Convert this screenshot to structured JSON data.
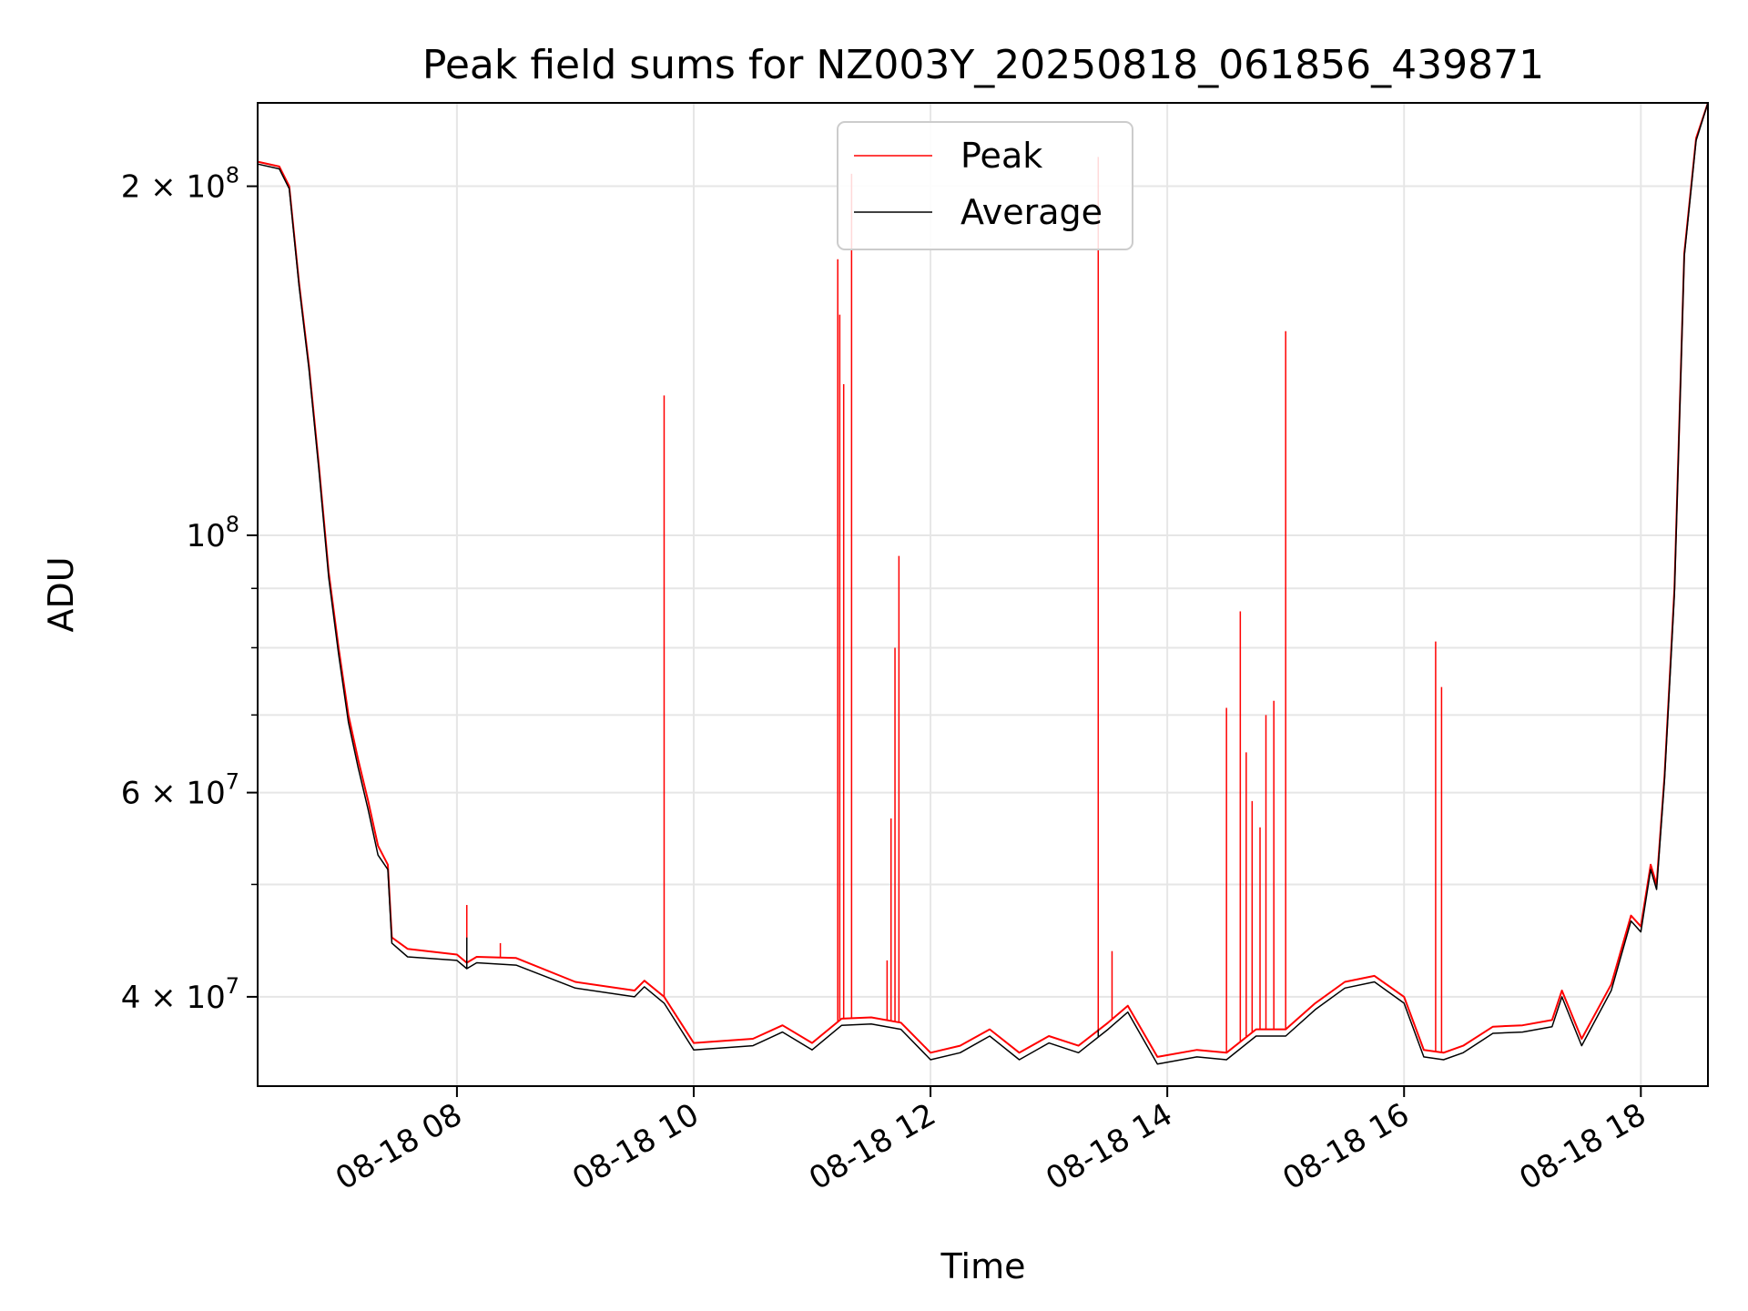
{
  "chart_data": {
    "type": "line",
    "title": "Peak field sums for NZ003Y_20250818_061856_439871",
    "xlabel": "Time",
    "ylabel": "ADU",
    "yscale": "log",
    "xlim": [
      "2025-08-18 06:19",
      "2025-08-18 18:34"
    ],
    "ylim": [
      33500000,
      236000000
    ],
    "grid": true,
    "legend_position": "top-center",
    "x_ticks": [
      {
        "t": "2025-08-18 08:00",
        "label": "08-18 08"
      },
      {
        "t": "2025-08-18 10:00",
        "label": "08-18 10"
      },
      {
        "t": "2025-08-18 12:00",
        "label": "08-18 12"
      },
      {
        "t": "2025-08-18 14:00",
        "label": "08-18 14"
      },
      {
        "t": "2025-08-18 16:00",
        "label": "08-18 16"
      },
      {
        "t": "2025-08-18 18:00",
        "label": "08-18 18"
      }
    ],
    "y_ticks": [
      {
        "v": 40000000,
        "base": "4 × 10",
        "exp": "7"
      },
      {
        "v": 60000000,
        "base": "6 × 10",
        "exp": "7"
      },
      {
        "v": 100000000,
        "base": "10",
        "exp": "8"
      },
      {
        "v": 200000000,
        "base": "2 × 10",
        "exp": "8"
      }
    ],
    "y_minor": [
      50000000,
      70000000,
      80000000,
      90000000
    ],
    "series": [
      {
        "name": "Peak",
        "color": "#ff0000",
        "points": [
          [
            "06:19",
            210000000
          ],
          [
            "06:30",
            208000000
          ],
          [
            "06:35",
            200000000
          ],
          [
            "06:40",
            165000000
          ],
          [
            "06:45",
            140000000
          ],
          [
            "06:50",
            115000000
          ],
          [
            "06:55",
            93000000
          ],
          [
            "07:00",
            80000000
          ],
          [
            "07:05",
            70000000
          ],
          [
            "07:10",
            64000000
          ],
          [
            "07:15",
            59000000
          ],
          [
            "07:20",
            54000000
          ],
          [
            "07:25",
            52000000
          ],
          [
            "07:27",
            45000000
          ],
          [
            "07:35",
            44000000
          ],
          [
            "08:00",
            43500000
          ],
          [
            "08:05",
            42800000
          ],
          [
            "08:10",
            43300000
          ],
          [
            "08:30",
            43200000
          ],
          [
            "09:00",
            41200000
          ],
          [
            "09:30",
            40500000
          ],
          [
            "09:35",
            41300000
          ],
          [
            "09:45",
            40000000
          ],
          [
            "10:00",
            36500000
          ],
          [
            "10:30",
            36800000
          ],
          [
            "10:45",
            37800000
          ],
          [
            "11:00",
            36500000
          ],
          [
            "11:15",
            38300000
          ],
          [
            "11:30",
            38400000
          ],
          [
            "11:45",
            38000000
          ],
          [
            "12:00",
            35800000
          ],
          [
            "12:15",
            36300000
          ],
          [
            "12:30",
            37500000
          ],
          [
            "12:45",
            35800000
          ],
          [
            "13:00",
            37000000
          ],
          [
            "13:15",
            36300000
          ],
          [
            "13:30",
            38000000
          ],
          [
            "13:40",
            39300000
          ],
          [
            "13:55",
            35500000
          ],
          [
            "14:15",
            36000000
          ],
          [
            "14:30",
            35800000
          ],
          [
            "14:45",
            37500000
          ],
          [
            "15:00",
            37500000
          ],
          [
            "15:15",
            39500000
          ],
          [
            "15:30",
            41200000
          ],
          [
            "15:45",
            41700000
          ],
          [
            "16:00",
            40000000
          ],
          [
            "16:10",
            36000000
          ],
          [
            "16:20",
            35800000
          ],
          [
            "16:30",
            36300000
          ],
          [
            "16:45",
            37700000
          ],
          [
            "17:00",
            37800000
          ],
          [
            "17:15",
            38200000
          ],
          [
            "17:20",
            40500000
          ],
          [
            "17:30",
            36800000
          ],
          [
            "17:45",
            41000000
          ],
          [
            "17:55",
            47000000
          ],
          [
            "18:00",
            46000000
          ],
          [
            "18:05",
            52000000
          ],
          [
            "18:08",
            50000000
          ],
          [
            "18:12",
            62000000
          ],
          [
            "18:17",
            90000000
          ],
          [
            "18:22",
            175000000
          ],
          [
            "18:28",
            220000000
          ],
          [
            "18:34",
            236000000
          ]
        ],
        "spikes": [
          [
            "08:05",
            48000000
          ],
          [
            "08:22",
            44500000
          ],
          [
            "09:45",
            132000000
          ],
          [
            "11:13",
            173000000
          ],
          [
            "11:14",
            155000000
          ],
          [
            "11:16",
            135000000
          ],
          [
            "11:20",
            205000000
          ],
          [
            "11:38",
            43000000
          ],
          [
            "11:40",
            57000000
          ],
          [
            "11:42",
            80000000
          ],
          [
            "11:44",
            96000000
          ],
          [
            "13:25",
            212000000
          ],
          [
            "13:32",
            43800000
          ],
          [
            "14:30",
            71000000
          ],
          [
            "14:37",
            86000000
          ],
          [
            "14:40",
            65000000
          ],
          [
            "14:43",
            59000000
          ],
          [
            "14:47",
            56000000
          ],
          [
            "14:50",
            70000000
          ],
          [
            "14:54",
            72000000
          ],
          [
            "15:00",
            150000000
          ],
          [
            "16:16",
            81000000
          ],
          [
            "16:19",
            74000000
          ]
        ]
      },
      {
        "name": "Average",
        "color": "#000000",
        "points": [
          [
            "06:19",
            209000000
          ],
          [
            "06:30",
            207000000
          ],
          [
            "06:35",
            199000000
          ],
          [
            "06:40",
            164000000
          ],
          [
            "06:45",
            139000000
          ],
          [
            "06:50",
            114000000
          ],
          [
            "06:55",
            92000000
          ],
          [
            "07:00",
            79000000
          ],
          [
            "07:05",
            69000000
          ],
          [
            "07:10",
            63000000
          ],
          [
            "07:15",
            58000000
          ],
          [
            "07:20",
            53000000
          ],
          [
            "07:25",
            51500000
          ],
          [
            "07:27",
            44500000
          ],
          [
            "07:35",
            43300000
          ],
          [
            "08:00",
            43000000
          ],
          [
            "08:05",
            42300000
          ],
          [
            "08:10",
            42800000
          ],
          [
            "08:30",
            42600000
          ],
          [
            "09:00",
            40700000
          ],
          [
            "09:30",
            40000000
          ],
          [
            "09:35",
            40800000
          ],
          [
            "09:45",
            39500000
          ],
          [
            "10:00",
            36000000
          ],
          [
            "10:30",
            36300000
          ],
          [
            "10:45",
            37300000
          ],
          [
            "11:00",
            36000000
          ],
          [
            "11:15",
            37800000
          ],
          [
            "11:30",
            37900000
          ],
          [
            "11:45",
            37500000
          ],
          [
            "12:00",
            35300000
          ],
          [
            "12:15",
            35800000
          ],
          [
            "12:30",
            37000000
          ],
          [
            "12:45",
            35300000
          ],
          [
            "13:00",
            36500000
          ],
          [
            "13:15",
            35800000
          ],
          [
            "13:30",
            37500000
          ],
          [
            "13:40",
            38800000
          ],
          [
            "13:55",
            35000000
          ],
          [
            "14:15",
            35500000
          ],
          [
            "14:30",
            35300000
          ],
          [
            "14:45",
            37000000
          ],
          [
            "15:00",
            37000000
          ],
          [
            "15:15",
            39000000
          ],
          [
            "15:30",
            40700000
          ],
          [
            "15:45",
            41200000
          ],
          [
            "16:00",
            39500000
          ],
          [
            "16:10",
            35500000
          ],
          [
            "16:20",
            35300000
          ],
          [
            "16:30",
            35800000
          ],
          [
            "16:45",
            37200000
          ],
          [
            "17:00",
            37300000
          ],
          [
            "17:15",
            37700000
          ],
          [
            "17:20",
            40000000
          ],
          [
            "17:30",
            36300000
          ],
          [
            "17:45",
            40500000
          ],
          [
            "17:55",
            46500000
          ],
          [
            "18:00",
            45500000
          ],
          [
            "18:05",
            51500000
          ],
          [
            "18:08",
            49500000
          ],
          [
            "18:12",
            61500000
          ],
          [
            "18:17",
            89000000
          ],
          [
            "18:22",
            174000000
          ],
          [
            "18:28",
            219000000
          ],
          [
            "18:34",
            236000000
          ]
        ],
        "spikes": [
          [
            "08:05",
            45000000
          ],
          [
            "13:25",
            37500000
          ]
        ]
      }
    ]
  }
}
